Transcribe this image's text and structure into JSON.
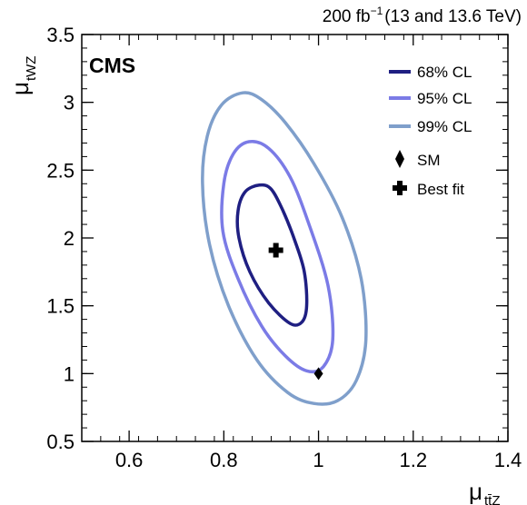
{
  "header": {
    "lumi_value": "200 fb",
    "lumi_exp": "−1",
    "lumi_energy": "(13 and 13.6 TeV)",
    "experiment": "CMS"
  },
  "chart_data": {
    "type": "contour",
    "xlabel_main": "μ",
    "xlabel_sub": "tt̄Z",
    "ylabel_main": "μ",
    "ylabel_sub": "tWZ",
    "xlim": [
      0.5,
      1.4
    ],
    "ylim": [
      0.5,
      3.5
    ],
    "xticks": [
      0.6,
      0.8,
      1.0,
      1.2,
      1.4
    ],
    "xtick_labels": [
      "0.6",
      "0.8",
      "1",
      "1.2",
      "1.4"
    ],
    "yticks": [
      0.5,
      1.0,
      1.5,
      2.0,
      2.5,
      3.0,
      3.5
    ],
    "ytick_labels": [
      "0.5",
      "1",
      "1.5",
      "2",
      "2.5",
      "3",
      "3.5"
    ],
    "contours": [
      {
        "name": "68% CL",
        "color": "#1f1f82",
        "points": [
          [
            0.875,
            2.39
          ],
          [
            0.845,
            2.34
          ],
          [
            0.83,
            2.2
          ],
          [
            0.832,
            2.0
          ],
          [
            0.855,
            1.75
          ],
          [
            0.895,
            1.52
          ],
          [
            0.94,
            1.37
          ],
          [
            0.965,
            1.38
          ],
          [
            0.975,
            1.5
          ],
          [
            0.97,
            1.75
          ],
          [
            0.95,
            1.98
          ],
          [
            0.925,
            2.2
          ],
          [
            0.9,
            2.36
          ]
        ]
      },
      {
        "name": "95% CL",
        "color": "#7b7be6",
        "points": [
          [
            0.853,
            2.71
          ],
          [
            0.82,
            2.62
          ],
          [
            0.8,
            2.4
          ],
          [
            0.798,
            2.05
          ],
          [
            0.83,
            1.7
          ],
          [
            0.88,
            1.35
          ],
          [
            0.93,
            1.13
          ],
          [
            0.975,
            1.02
          ],
          [
            1.01,
            1.05
          ],
          [
            1.03,
            1.25
          ],
          [
            1.02,
            1.65
          ],
          [
            0.98,
            2.1
          ],
          [
            0.94,
            2.45
          ],
          [
            0.895,
            2.66
          ]
        ]
      },
      {
        "name": "99% CL",
        "color": "#7f9fcb",
        "points": [
          [
            0.84,
            3.07
          ],
          [
            0.795,
            2.98
          ],
          [
            0.765,
            2.75
          ],
          [
            0.755,
            2.4
          ],
          [
            0.77,
            1.95
          ],
          [
            0.81,
            1.5
          ],
          [
            0.87,
            1.1
          ],
          [
            0.935,
            0.86
          ],
          [
            0.99,
            0.78
          ],
          [
            1.04,
            0.8
          ],
          [
            1.08,
            0.95
          ],
          [
            1.1,
            1.25
          ],
          [
            1.09,
            1.7
          ],
          [
            1.05,
            2.15
          ],
          [
            0.99,
            2.55
          ],
          [
            0.93,
            2.85
          ],
          [
            0.88,
            3.02
          ]
        ]
      }
    ],
    "sm_point": {
      "name": "SM",
      "x": 1.0,
      "y": 1.0
    },
    "best_fit": {
      "name": "Best fit",
      "x": 0.91,
      "y": 1.91
    },
    "legend_position": "top-right",
    "grid": false
  }
}
